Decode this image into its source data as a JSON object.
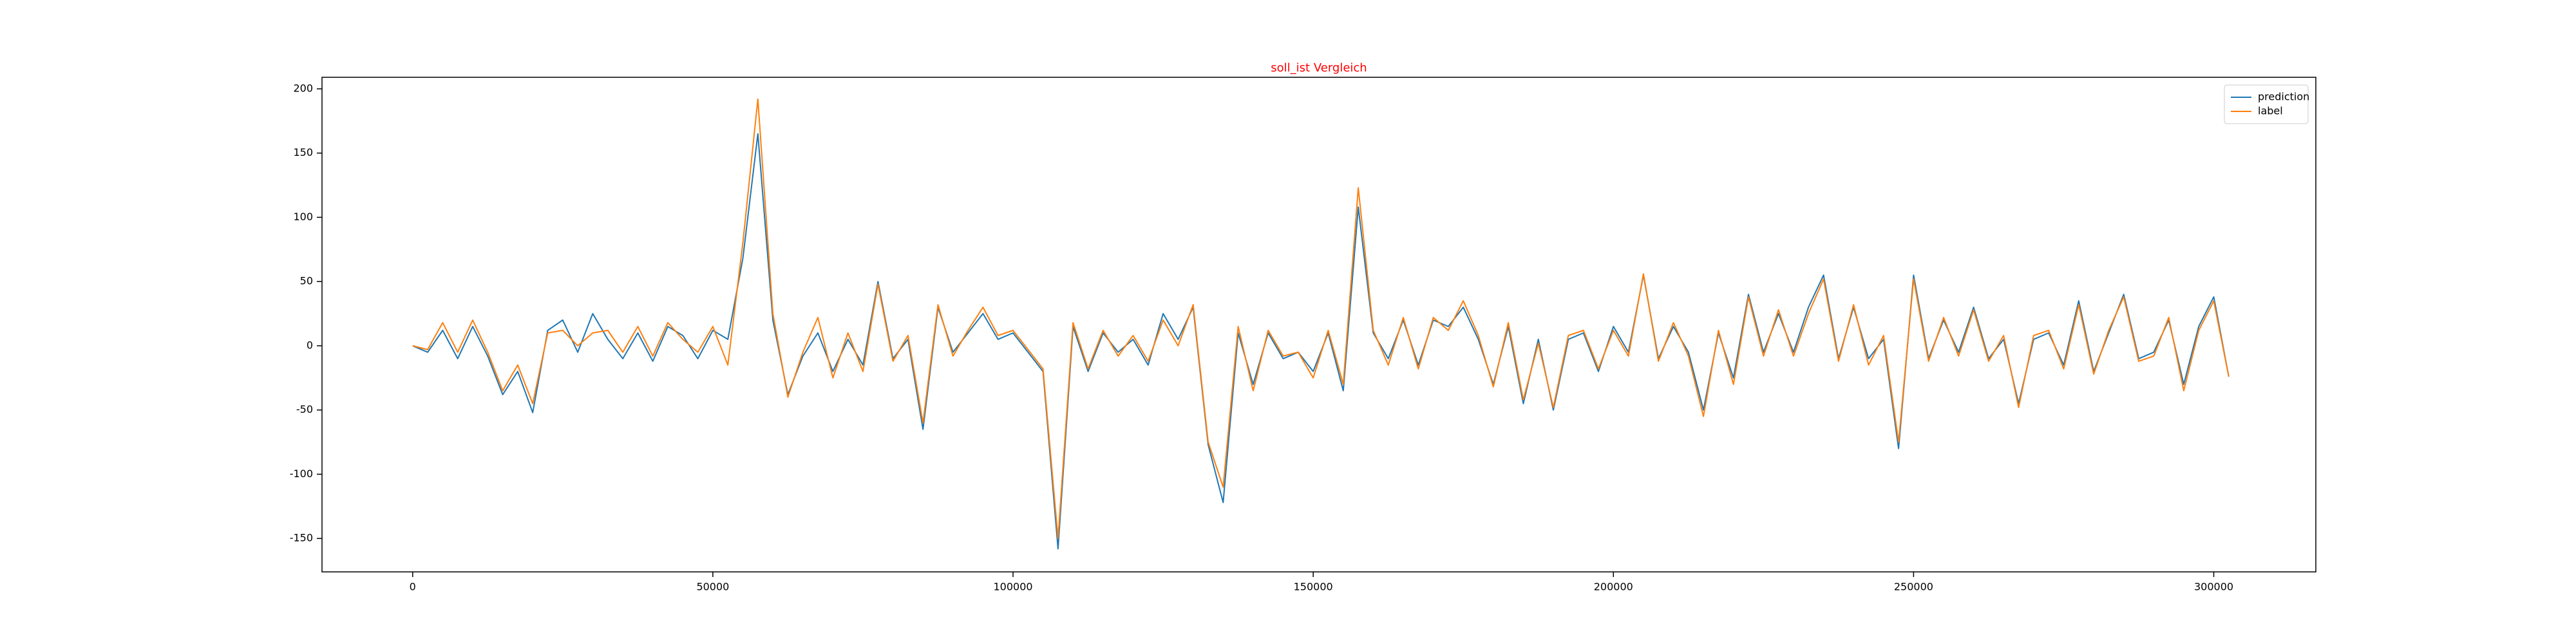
{
  "chart_data": {
    "type": "line",
    "title": "soll_ist Vergleich",
    "title_color": "#ff0000",
    "x": [
      0,
      2500,
      5000,
      7500,
      10000,
      12500,
      15000,
      17500,
      20000,
      22500,
      25000,
      27500,
      30000,
      32500,
      35000,
      37500,
      40000,
      42500,
      45000,
      47500,
      50000,
      52500,
      55000,
      57500,
      60000,
      62500,
      65000,
      67500,
      70000,
      72500,
      75000,
      77500,
      80000,
      82500,
      85000,
      87500,
      90000,
      92500,
      95000,
      97500,
      100000,
      102500,
      105000,
      107500,
      110000,
      112500,
      115000,
      117500,
      120000,
      122500,
      125000,
      127500,
      130000,
      132500,
      135000,
      137500,
      140000,
      142500,
      145000,
      147500,
      150000,
      152500,
      155000,
      157500,
      160000,
      162500,
      165000,
      167500,
      170000,
      172500,
      175000,
      177500,
      180000,
      182500,
      185000,
      187500,
      190000,
      192500,
      195000,
      197500,
      200000,
      202500,
      205000,
      207500,
      210000,
      212500,
      215000,
      217500,
      220000,
      222500,
      225000,
      227500,
      230000,
      232500,
      235000,
      237500,
      240000,
      242500,
      245000,
      247500,
      250000,
      252500,
      255000,
      257500,
      260000,
      262500,
      265000,
      267500,
      270000,
      272500,
      275000,
      277500,
      280000,
      282500,
      285000,
      287500,
      290000,
      292500,
      295000,
      297500,
      300000,
      302500
    ],
    "series": [
      {
        "name": "prediction",
        "color": "#1f77b4",
        "values": [
          0,
          -5,
          12,
          -10,
          15,
          -8,
          -38,
          -20,
          -52,
          12,
          20,
          -5,
          25,
          5,
          -10,
          10,
          -12,
          15,
          8,
          -10,
          12,
          5,
          68,
          165,
          20,
          -38,
          -8,
          10,
          -20,
          5,
          -15,
          50,
          -10,
          5,
          -65,
          30,
          -5,
          10,
          25,
          5,
          10,
          -5,
          -20,
          -158,
          15,
          -20,
          10,
          -5,
          5,
          -15,
          25,
          5,
          30,
          -77,
          -122,
          10,
          -30,
          10,
          -10,
          -5,
          -20,
          10,
          -35,
          108,
          10,
          -10,
          20,
          -15,
          20,
          15,
          30,
          5,
          -30,
          15,
          -45,
          5,
          -50,
          5,
          10,
          -20,
          15,
          -5,
          55,
          -10,
          15,
          -5,
          -50,
          10,
          -25,
          40,
          -5,
          25,
          -5,
          30,
          55,
          -10,
          30,
          -10,
          5,
          -80,
          55,
          -10,
          20,
          -5,
          30,
          -10,
          5,
          -45,
          5,
          10,
          -15,
          35,
          -20,
          10,
          40,
          -10,
          -5,
          20,
          -30,
          15,
          38,
          -24
        ]
      },
      {
        "name": "label",
        "color": "#ff7f0e",
        "values": [
          0,
          -3,
          18,
          -5,
          20,
          -5,
          -35,
          -15,
          -45,
          10,
          12,
          0,
          10,
          12,
          -5,
          15,
          -8,
          18,
          5,
          -5,
          15,
          -15,
          80,
          192,
          25,
          -40,
          -5,
          22,
          -25,
          10,
          -20,
          48,
          -12,
          8,
          -60,
          32,
          -8,
          12,
          30,
          8,
          12,
          -3,
          -18,
          -150,
          18,
          -18,
          12,
          -8,
          8,
          -12,
          20,
          0,
          32,
          -75,
          -110,
          15,
          -35,
          12,
          -8,
          -5,
          -25,
          12,
          -30,
          123,
          12,
          -15,
          22,
          -18,
          22,
          12,
          35,
          8,
          -32,
          18,
          -42,
          2,
          -48,
          8,
          12,
          -18,
          12,
          -8,
          56,
          -12,
          18,
          -8,
          -55,
          12,
          -30,
          38,
          -8,
          28,
          -8,
          25,
          52,
          -12,
          32,
          -15,
          8,
          -75,
          52,
          -12,
          22,
          -8,
          28,
          -12,
          8,
          -48,
          8,
          12,
          -18,
          32,
          -22,
          12,
          38,
          -12,
          -8,
          22,
          -35,
          12,
          35,
          -24
        ]
      }
    ],
    "xlim": [
      -15100,
      317000
    ],
    "ylim": [
      -176,
      209
    ],
    "xticks": [
      0,
      50000,
      100000,
      150000,
      200000,
      250000,
      300000
    ],
    "yticks": [
      -150,
      -100,
      -50,
      0,
      50,
      100,
      150,
      200
    ],
    "legend": "upper right",
    "grid": false
  }
}
